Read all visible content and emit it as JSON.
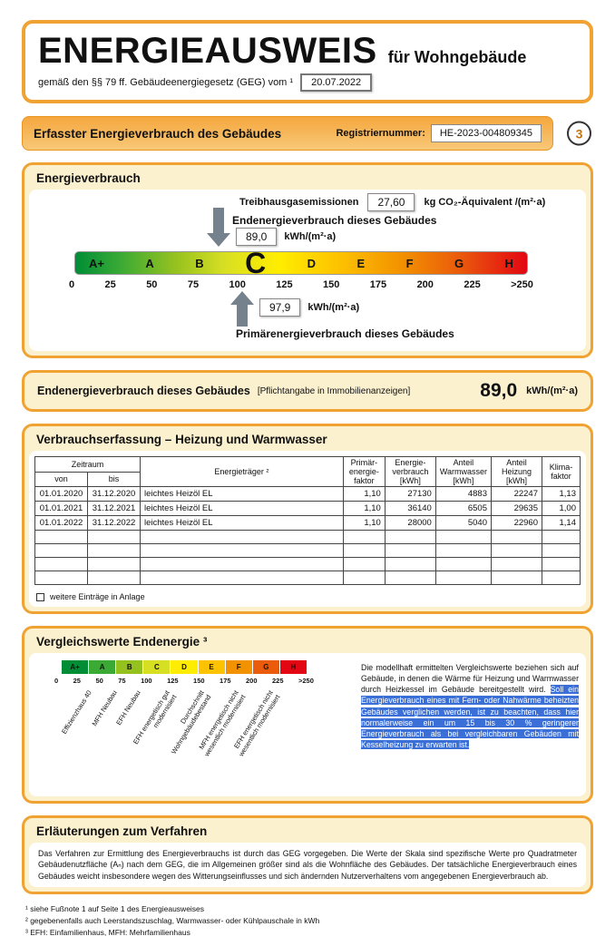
{
  "colors": {
    "accent_orange": "#F0A232",
    "section_bg": "#FBF1CF",
    "highlight_blue": "#3A6FD8",
    "arrow_gray": "#76818E",
    "scale_colors": [
      "#008D36",
      "#3AAA35",
      "#95C11F",
      "#D7DF23",
      "#FFED00",
      "#FDC300",
      "#F39200",
      "#EA5B0C",
      "#E30613"
    ]
  },
  "header": {
    "title": "ENERGIEAUSWEIS",
    "subtitle": "für Wohngebäude",
    "law_text": "gemäß den §§ 79 ff. Gebäudeenergiegesetz (GEG) vom ¹",
    "date": "20.07.2022"
  },
  "banner": {
    "title": "Erfasster Energieverbrauch des Gebäudes",
    "reg_label": "Registriernummer:",
    "reg_number": "HE-2023-004809345",
    "page_number": "3"
  },
  "consumption_section": {
    "title": "Energieverbrauch",
    "ghg_label": "Treibhausgasemissionen",
    "ghg_value": "27,60",
    "ghg_unit": "kg CO₂-Äquivalent /(m²·a)",
    "end_energy_label": "Endenergieverbrauch dieses Gebäudes",
    "end_energy_value": "89,0",
    "end_energy_unit": "kWh/(m²·a)",
    "primary_energy_label": "Primärenergieverbrauch dieses Gebäudes",
    "primary_energy_value": "97,9",
    "primary_energy_unit": "kWh/(m²·a)",
    "scale_classes": [
      "A+",
      "A",
      "B",
      "C",
      "D",
      "E",
      "F",
      "G",
      "H"
    ],
    "scale_ticks": [
      "0",
      "25",
      "50",
      "75",
      "100",
      "125",
      "150",
      "175",
      "200",
      "225",
      ">250"
    ]
  },
  "end_energy_strip": {
    "label": "Endenergieverbrauch dieses Gebäudes",
    "note": "[Pflichtangabe in Immobilienanzeigen]",
    "value": "89,0",
    "unit": "kWh/(m²·a)"
  },
  "consumption_table": {
    "title": "Verbrauchserfassung – Heizung und Warmwasser",
    "headers": {
      "zeitraum": "Zeitraum",
      "von": "von",
      "bis": "bis",
      "energietraeger": "Energieträger ²",
      "faktor": "Primär-\nenergie-\nfaktor",
      "verbrauch": "Energie-\nverbrauch\n[kWh]",
      "warmwasser": "Anteil\nWarmwasser\n[kWh]",
      "heizung": "Anteil\nHeizung\n[kWh]",
      "klima": "Klima-\nfaktor"
    },
    "rows": [
      {
        "von": "01.01.2020",
        "bis": "31.12.2020",
        "energietraeger": "leichtes Heizöl EL",
        "faktor": "1,10",
        "verbrauch": "27130",
        "warmwasser": "4883",
        "heizung": "22247",
        "klima": "1,13"
      },
      {
        "von": "01.01.2021",
        "bis": "31.12.2021",
        "energietraeger": "leichtes Heizöl EL",
        "faktor": "1,10",
        "verbrauch": "36140",
        "warmwasser": "6505",
        "heizung": "29635",
        "klima": "1,00"
      },
      {
        "von": "01.01.2022",
        "bis": "31.12.2022",
        "energietraeger": "leichtes Heizöl EL",
        "faktor": "1,10",
        "verbrauch": "28000",
        "warmwasser": "5040",
        "heizung": "22960",
        "klima": "1,14"
      }
    ],
    "checkbox_label": "weitere Einträge in Anlage"
  },
  "comparison_section": {
    "title": "Vergleichswerte Endenergie ³",
    "scale_classes": [
      "A+",
      "A",
      "B",
      "C",
      "D",
      "E",
      "F",
      "G",
      "H"
    ],
    "scale_ticks": [
      "0",
      "25",
      "50",
      "75",
      "100",
      "125",
      "150",
      "175",
      "200",
      "225",
      ">250"
    ],
    "labels": [
      "Effizienzhaus 40",
      "MFH Neubau",
      "EFH Neubau",
      "EFH energetisch gut modernisiert",
      "Durchschnitt Wohngebäudebestand",
      "MFH energetisch nicht wesentlich modernisiert",
      "EFH energetisch nicht wesentlich modernisiert"
    ],
    "text_normal": "Die modellhaft ermittelten Vergleichswerte beziehen sich auf Gebäude, in denen die Wärme für Heizung und Warmwasser durch Heizkessel im Gebäude bereitgestellt wird. ",
    "text_highlighted": "Soll ein Energieverbrauch eines mit Fern- oder Nahwärme beheizten Gebäudes verglichen werden, ist zu beachten, dass hier normalerweise ein um 15 bis 30 % geringerer Energieverbrauch als bei vergleichbaren Gebäuden mit Kesselheizung zu erwarten ist."
  },
  "explanation_section": {
    "title": "Erläuterungen zum Verfahren",
    "text": "Das Verfahren zur Ermittlung des Energieverbrauchs ist durch das GEG vorgegeben. Die Werte der Skala sind spezifische Werte pro Quadratmeter Gebäudenutzfläche (Aₙ) nach dem GEG, die im Allgemeinen größer sind als die Wohnfläche des Gebäudes. Der tatsächliche Energieverbrauch eines Gebäudes weicht insbesondere wegen des Witterungseinflusses und sich ändernden Nutzerverhaltens vom angegebenen Energieverbrauch ab."
  },
  "footnotes": [
    "¹ siehe Fußnote 1 auf Seite 1 des Energieausweises",
    "² gegebenenfalls auch Leerstandszuschlag, Warmwasser- oder Kühlpauschale in kWh",
    "³ EFH: Einfamilienhaus, MFH: Mehrfamilienhaus"
  ]
}
